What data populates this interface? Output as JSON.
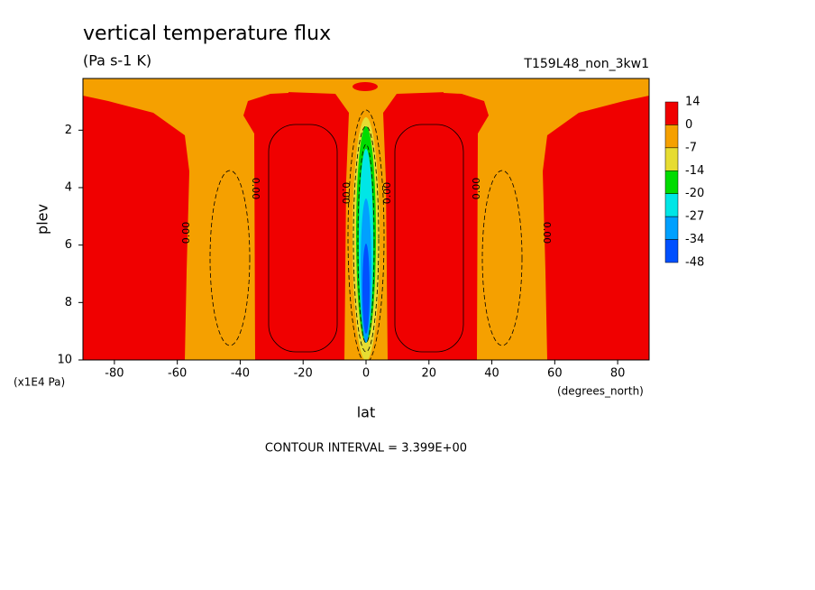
{
  "chart_data": {
    "type": "contour",
    "title": "vertical temperature flux",
    "subtitle": "(Pa s-1 K)",
    "run_label": "T159L48_non_3kw1",
    "x_label": "lat",
    "x_unit": "(degrees_north)",
    "y_label": "plev",
    "y_unit": "(x1E4 Pa)",
    "footnote": "CONTOUR INTERVAL = 3.399E+00",
    "xlim": [
      -90,
      90
    ],
    "xticks": [
      -80,
      -60,
      -40,
      -20,
      0,
      20,
      40,
      60,
      80
    ],
    "ylim": [
      10,
      0.2
    ],
    "yticks": [
      2,
      4,
      6,
      8,
      10
    ],
    "colorbar": {
      "levels": [
        14,
        0,
        -7,
        -14,
        -20,
        -27,
        -34,
        -48
      ],
      "colors": [
        "#f00000",
        "#f5a000",
        "#e6dc32",
        "#00dc00",
        "#00e6e6",
        "#00a0ff",
        "#0050ff"
      ]
    },
    "contour_labels": [
      "0.00",
      "0.00",
      "0.00",
      "0.00",
      "0.00",
      "0.00"
    ]
  }
}
